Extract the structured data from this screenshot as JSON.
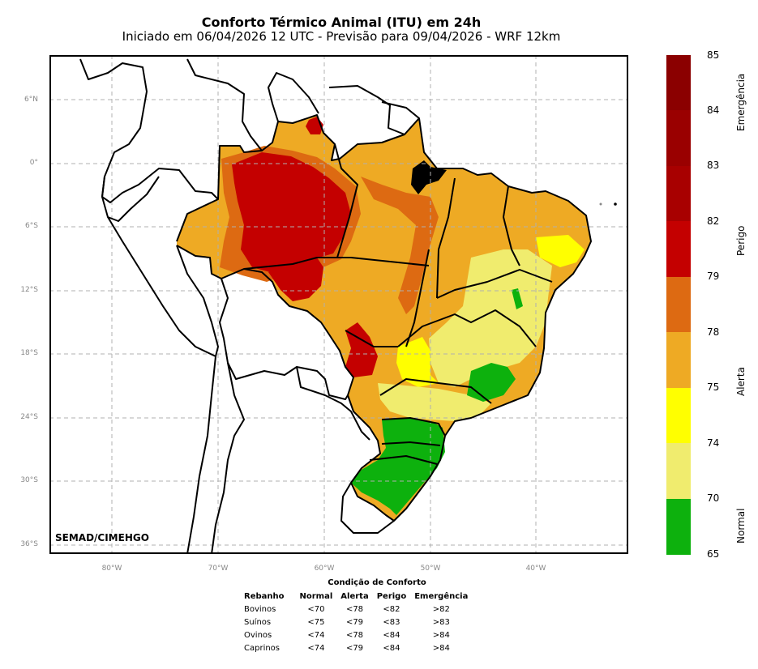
{
  "figure": {
    "title": "Conforto Térmico Animal (ITU) em 24h",
    "subtitle": "Iniciado em 06/04/2026 12 UTC - Previsão para 09/04/2026 - WRF 12km",
    "credit": "SEMAD/CIMEHGO"
  },
  "axes": {
    "lat_ticks": [
      "6°N",
      "0°",
      "6°S",
      "12°S",
      "18°S",
      "24°S",
      "30°S",
      "36°S"
    ],
    "lon_ticks": [
      "80°W",
      "70°W",
      "60°W",
      "50°W",
      "40°W"
    ]
  },
  "colorbar": {
    "ticks": [
      "85",
      "84",
      "83",
      "82",
      "79",
      "78",
      "75",
      "74",
      "70",
      "65"
    ],
    "segments": [
      {
        "from": 84,
        "to": 85,
        "color": "#8b0000"
      },
      {
        "from": 83,
        "to": 84,
        "color": "#9a0000"
      },
      {
        "from": 82,
        "to": 83,
        "color": "#a80000"
      },
      {
        "from": 79,
        "to": 82,
        "color": "#c40000"
      },
      {
        "from": 78,
        "to": 79,
        "color": "#dd6a12"
      },
      {
        "from": 75,
        "to": 78,
        "color": "#eeaa24"
      },
      {
        "from": 74,
        "to": 75,
        "color": "#ffff00"
      },
      {
        "from": 70,
        "to": 74,
        "color": "#f0ec6e"
      },
      {
        "from": 65,
        "to": 70,
        "color": "#0db10d"
      }
    ],
    "categories": [
      "Emergência",
      "Perigo",
      "Alerta",
      "Normal"
    ]
  },
  "comfort_table": {
    "title": "Condição de Conforto",
    "headers": [
      "Rebanho",
      "Normal",
      "Alerta",
      "Perigo",
      "Emergência"
    ],
    "rows": [
      [
        "Bovinos",
        "<70",
        "<78",
        "<82",
        ">82"
      ],
      [
        "Suínos",
        "<75",
        "<79",
        "<83",
        ">83"
      ],
      [
        "Ovinos",
        "<74",
        "<78",
        "<84",
        ">84"
      ],
      [
        "Caprinos",
        "<74",
        "<79",
        "<84",
        ">84"
      ]
    ]
  }
}
